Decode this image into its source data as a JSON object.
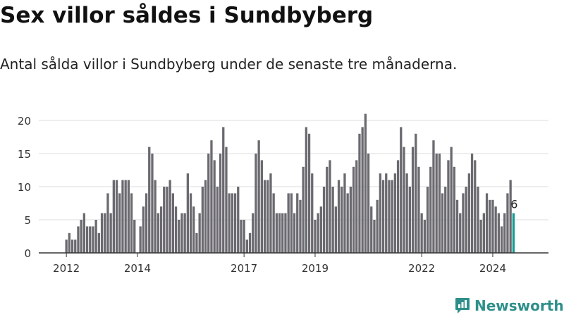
{
  "header": {
    "title": "Sex villor såldes i Sundbyberg",
    "subtitle": "Antal sålda villor i Sundbyberg under de senaste tre månaderna."
  },
  "brand": {
    "name": "Newsworthy"
  },
  "colors": {
    "bar": "#6b6a70",
    "highlight": "#139a93",
    "grid": "#dddddd",
    "axis": "#333333",
    "brand": "#2e8f8a"
  },
  "chart_data": {
    "type": "bar",
    "title": "Sex villor såldes i Sundbyberg",
    "xlabel": "",
    "ylabel": "",
    "ylim": [
      0,
      21
    ],
    "yticks": [
      0,
      5,
      10,
      15,
      20
    ],
    "grid": true,
    "legend": "none",
    "start": "2012-01",
    "x_tick_labels": [
      {
        "label": "2012",
        "index": 0
      },
      {
        "label": "2014",
        "index": 24
      },
      {
        "label": "2017",
        "index": 60
      },
      {
        "label": "2019",
        "index": 84
      },
      {
        "label": "2022",
        "index": 120
      },
      {
        "label": "2024",
        "index": 144
      }
    ],
    "values": [
      2,
      3,
      2,
      2,
      4,
      5,
      6,
      4,
      4,
      4,
      5,
      3,
      6,
      6,
      9,
      6,
      11,
      11,
      9,
      11,
      11,
      11,
      9,
      5,
      0,
      4,
      7,
      9,
      16,
      15,
      11,
      6,
      7,
      10,
      10,
      11,
      9,
      7,
      5,
      6,
      6,
      12,
      9,
      7,
      3,
      6,
      10,
      11,
      15,
      17,
      14,
      10,
      15,
      19,
      16,
      9,
      9,
      9,
      10,
      5,
      5,
      2,
      3,
      6,
      15,
      17,
      14,
      11,
      11,
      12,
      9,
      6,
      6,
      6,
      6,
      9,
      9,
      6,
      9,
      8,
      13,
      19,
      18,
      12,
      5,
      6,
      7,
      10,
      13,
      14,
      10,
      7,
      11,
      10,
      12,
      9,
      10,
      13,
      14,
      18,
      19,
      21,
      15,
      7,
      5,
      8,
      12,
      11,
      12,
      11,
      11,
      12,
      14,
      19,
      16,
      12,
      10,
      16,
      18,
      13,
      6,
      5,
      10,
      13,
      17,
      15,
      15,
      9,
      10,
      14,
      16,
      13,
      8,
      6,
      9,
      10,
      12,
      15,
      14,
      10,
      5,
      6,
      9,
      8,
      8,
      7,
      6,
      4,
      6,
      9,
      11,
      6
    ],
    "highlight_index": 151,
    "highlight_label": "6"
  }
}
